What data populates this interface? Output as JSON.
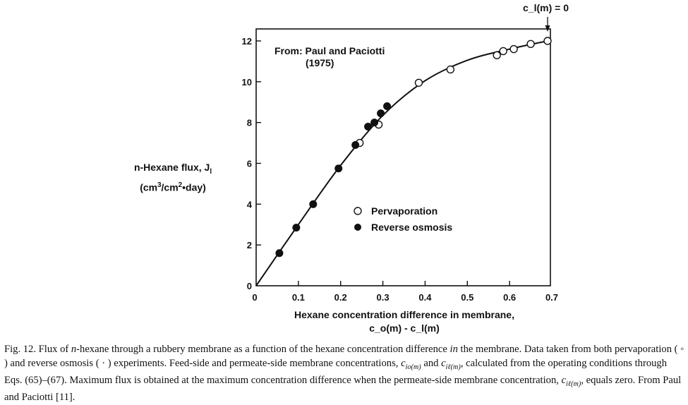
{
  "chart_data": {
    "type": "scatter",
    "title": "",
    "source_note": [
      "From: Paul and Paciotti",
      "(1975)"
    ],
    "xlabel": "Hexane concentration difference in membrane,",
    "xlabel_sub": "c_o(m) - c_l(m)",
    "ylabel_line1": "n-Hexane flux, J",
    "ylabel_sub": "l",
    "ylabel_line2_prefix": "(cm",
    "ylabel_line2_sup1": "3",
    "ylabel_line2_mid": "/cm",
    "ylabel_line2_sup2": "2",
    "ylabel_line2_suffix": "•day)",
    "xlim": [
      0,
      0.7
    ],
    "ylim": [
      0,
      12.5
    ],
    "x_ticks": [
      0,
      0.1,
      0.2,
      0.3,
      0.4,
      0.5,
      0.6,
      0.7
    ],
    "x_tick_labels": [
      "0",
      "0.1",
      "0.2",
      "0.3",
      "0.4",
      "0.5",
      "0.6",
      "0.7"
    ],
    "y_ticks": [
      0,
      2,
      4,
      6,
      8,
      10,
      12
    ],
    "y_tick_labels": [
      "0",
      "2",
      "4",
      "6",
      "8",
      "10",
      "12"
    ],
    "annotation": "c_l(m) = 0",
    "annotation_x": 0.69,
    "series": [
      {
        "name": "Pervaporation",
        "marker": "open-circle",
        "points": [
          {
            "x": 0.245,
            "y": 7.0
          },
          {
            "x": 0.29,
            "y": 7.9
          },
          {
            "x": 0.385,
            "y": 9.95
          },
          {
            "x": 0.46,
            "y": 10.6
          },
          {
            "x": 0.57,
            "y": 11.3
          },
          {
            "x": 0.585,
            "y": 11.5
          },
          {
            "x": 0.61,
            "y": 11.6
          },
          {
            "x": 0.65,
            "y": 11.85
          },
          {
            "x": 0.69,
            "y": 12.0
          }
        ]
      },
      {
        "name": "Reverse osmosis",
        "marker": "filled-circle",
        "points": [
          {
            "x": 0.055,
            "y": 1.6
          },
          {
            "x": 0.095,
            "y": 2.85
          },
          {
            "x": 0.135,
            "y": 4.0
          },
          {
            "x": 0.195,
            "y": 5.75
          },
          {
            "x": 0.235,
            "y": 6.9
          },
          {
            "x": 0.265,
            "y": 7.8
          },
          {
            "x": 0.28,
            "y": 8.0
          },
          {
            "x": 0.295,
            "y": 8.45
          },
          {
            "x": 0.31,
            "y": 8.8
          }
        ]
      }
    ],
    "fit_curve": [
      {
        "x": 0,
        "y": 0
      },
      {
        "x": 0.1,
        "y": 3.0
      },
      {
        "x": 0.2,
        "y": 5.9
      },
      {
        "x": 0.3,
        "y": 8.35
      },
      {
        "x": 0.4,
        "y": 10.05
      },
      {
        "x": 0.5,
        "y": 11.05
      },
      {
        "x": 0.6,
        "y": 11.6
      },
      {
        "x": 0.69,
        "y": 12.0
      }
    ]
  },
  "caption": {
    "p1": "Fig. 12. Flux of ",
    "p2": "n",
    "p3": "-hexane through a rubbery membrane as a function of the hexane concentration difference ",
    "p4": "in",
    "p5": " the membrane. Data taken from both pervaporation ( ◦ ) and reverse osmosis ( · ) experiments. Feed-side and permeate-side membrane concentrations, ",
    "c1": "c",
    "c1_sub": "io(m)",
    "p6": " and ",
    "c2": "c",
    "c2_sub": "iℓ(m)",
    "p7": ", calculated from the operating conditions through Eqs. (65)–(67). Maximum flux is obtained at the maximum concentration difference when the permeate-side membrane concentration, ",
    "c3": "c",
    "c3_sub": "iℓ(m)",
    "p8": ", equals zero. From Paul and Paciotti [11]."
  }
}
